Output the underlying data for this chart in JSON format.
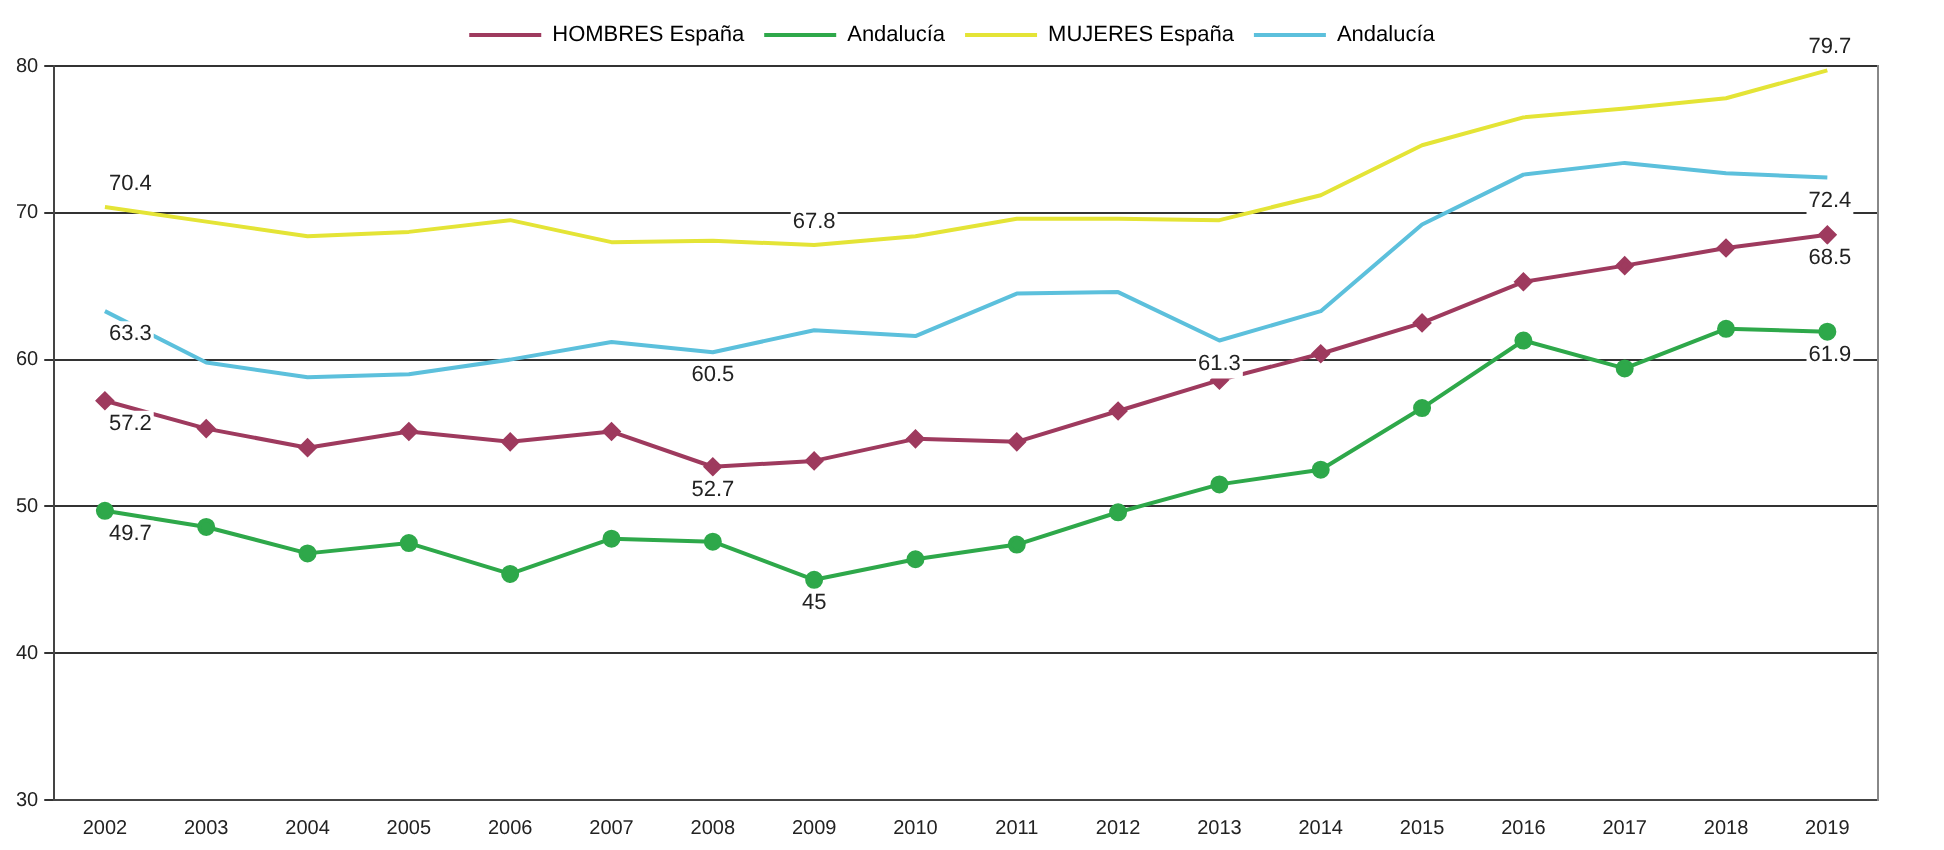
{
  "chart_data": {
    "type": "line",
    "categories": [
      "2002",
      "2003",
      "2004",
      "2005",
      "2006",
      "2007",
      "2008",
      "2009",
      "2010",
      "2011",
      "2012",
      "2013",
      "2014",
      "2015",
      "2016",
      "2017",
      "2018",
      "2019"
    ],
    "series": [
      {
        "name": "HOMBRES España",
        "color": "#9e3a5e",
        "marker": "diamond",
        "values": [
          57.2,
          55.3,
          54.0,
          55.1,
          54.4,
          55.1,
          52.7,
          53.1,
          54.6,
          54.4,
          56.5,
          58.6,
          60.4,
          62.5,
          65.3,
          66.4,
          67.6,
          68.5
        ],
        "value_labels": [
          "57.2",
          null,
          null,
          null,
          null,
          null,
          "52.7",
          null,
          null,
          null,
          null,
          null,
          null,
          null,
          null,
          null,
          null,
          "68.5"
        ]
      },
      {
        "name": "Andalucía",
        "color": "#2ea84a",
        "marker": "circle",
        "values": [
          49.7,
          48.6,
          46.8,
          47.5,
          45.4,
          47.8,
          47.6,
          45,
          46.4,
          47.4,
          49.6,
          51.5,
          52.5,
          56.7,
          61.3,
          59.4,
          62.1,
          61.9
        ],
        "value_labels": [
          "49.7",
          null,
          null,
          null,
          null,
          null,
          null,
          "45",
          null,
          null,
          null,
          null,
          null,
          null,
          null,
          null,
          null,
          "61.9"
        ]
      },
      {
        "name": "MUJERES España",
        "color": "#e4e436",
        "marker": "none",
        "values": [
          70.4,
          69.4,
          68.4,
          68.7,
          69.5,
          68.0,
          68.1,
          67.8,
          68.4,
          69.6,
          69.6,
          69.5,
          71.2,
          74.6,
          76.5,
          77.1,
          77.8,
          79.7
        ],
        "value_labels": [
          "70.4",
          null,
          null,
          null,
          null,
          null,
          null,
          "67.8",
          null,
          null,
          null,
          null,
          null,
          null,
          null,
          null,
          null,
          "79.7"
        ]
      },
      {
        "name": "Andalucía",
        "color": "#5cc0dc",
        "marker": "none",
        "values": [
          63.3,
          59.8,
          58.8,
          59.0,
          60.0,
          61.2,
          60.5,
          62.0,
          61.6,
          64.5,
          64.6,
          61.3,
          63.3,
          69.2,
          72.6,
          73.4,
          72.7,
          72.4
        ],
        "value_labels": [
          "63.3",
          null,
          null,
          null,
          null,
          null,
          "60.5",
          null,
          null,
          null,
          null,
          "61.3",
          null,
          null,
          null,
          null,
          null,
          "72.4"
        ]
      }
    ],
    "ylim": [
      30,
      80
    ],
    "yticks": [
      30,
      40,
      50,
      60,
      70,
      80
    ],
    "grid": "y",
    "legend": "top"
  }
}
